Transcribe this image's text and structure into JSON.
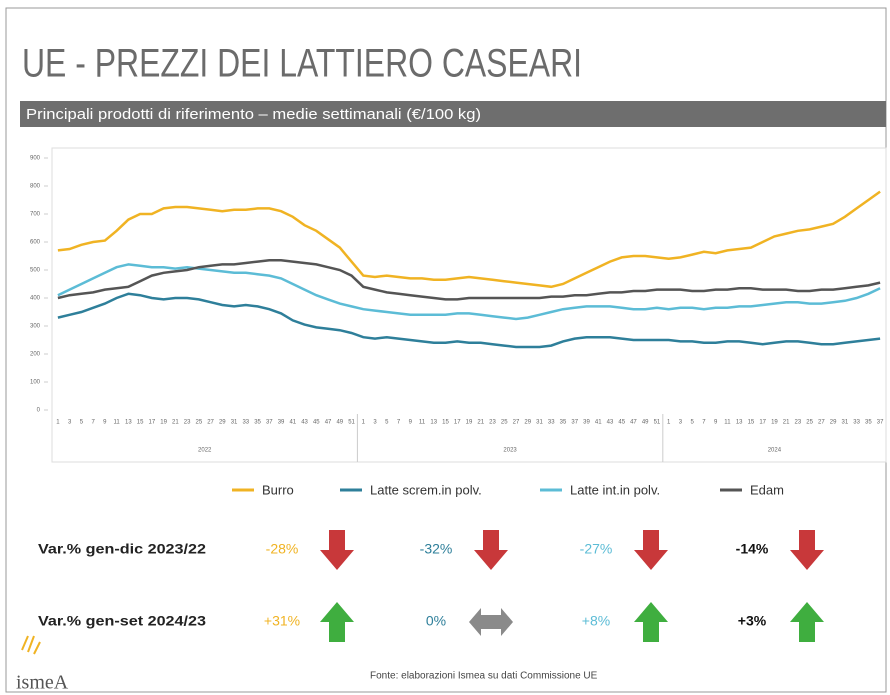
{
  "chart_data": {
    "type": "line",
    "title": "UE - PREZZI DEI LATTIERO CASEARI",
    "subtitle": "Principali prodotti di riferimento – medie settimanali (€/100 kg)",
    "groups": [
      {
        "name": "2022",
        "categories": [
          "1",
          "3",
          "5",
          "7",
          "9",
          "11",
          "13",
          "15",
          "17",
          "19",
          "21",
          "23",
          "25",
          "27",
          "29",
          "31",
          "33",
          "35",
          "37",
          "39",
          "41",
          "43",
          "45",
          "47",
          "49",
          "51"
        ]
      },
      {
        "name": "2023",
        "categories": [
          "1",
          "3",
          "5",
          "7",
          "9",
          "11",
          "13",
          "15",
          "17",
          "19",
          "21",
          "23",
          "25",
          "27",
          "29",
          "31",
          "33",
          "35",
          "37",
          "39",
          "41",
          "43",
          "45",
          "47",
          "49",
          "51"
        ]
      },
      {
        "name": "2024",
        "categories": [
          "1",
          "3",
          "5",
          "7",
          "9",
          "11",
          "13",
          "15",
          "17",
          "19",
          "21",
          "23",
          "25",
          "27",
          "29",
          "31",
          "33",
          "35",
          "37"
        ]
      }
    ],
    "ylim": [
      0,
      900
    ],
    "yticks": [
      0,
      100,
      200,
      300,
      400,
      500,
      600,
      700,
      800,
      900
    ],
    "series": [
      {
        "name": "Burro",
        "color": "#f0b323",
        "values": [
          570,
          575,
          590,
          600,
          605,
          640,
          680,
          700,
          700,
          720,
          725,
          725,
          720,
          715,
          710,
          715,
          715,
          720,
          720,
          710,
          690,
          660,
          640,
          610,
          580,
          530,
          480,
          475,
          480,
          475,
          470,
          470,
          465,
          465,
          470,
          475,
          470,
          465,
          460,
          455,
          450,
          445,
          440,
          450,
          470,
          490,
          510,
          530,
          545,
          550,
          550,
          545,
          540,
          545,
          555,
          565,
          560,
          570,
          575,
          580,
          600,
          620,
          630,
          640,
          645,
          655,
          665,
          690,
          720,
          750,
          780
        ]
      },
      {
        "name": "Latte screm.in polv.",
        "color": "#2e7f9a",
        "values": [
          330,
          340,
          350,
          365,
          380,
          400,
          415,
          410,
          400,
          395,
          400,
          400,
          395,
          385,
          375,
          370,
          375,
          370,
          360,
          345,
          320,
          305,
          295,
          290,
          285,
          275,
          260,
          255,
          260,
          255,
          250,
          245,
          240,
          240,
          245,
          240,
          240,
          235,
          230,
          225,
          225,
          225,
          230,
          245,
          255,
          260,
          260,
          260,
          255,
          250,
          250,
          250,
          250,
          245,
          245,
          240,
          240,
          245,
          245,
          240,
          235,
          240,
          245,
          245,
          240,
          235,
          235,
          240,
          245,
          250,
          255
        ]
      },
      {
        "name": "Latte int.in polv.",
        "color": "#5cbcd6",
        "values": [
          410,
          430,
          450,
          470,
          490,
          510,
          520,
          515,
          510,
          510,
          505,
          510,
          505,
          500,
          495,
          490,
          490,
          485,
          480,
          470,
          450,
          430,
          410,
          395,
          380,
          370,
          360,
          355,
          350,
          345,
          340,
          340,
          340,
          340,
          345,
          345,
          340,
          335,
          330,
          325,
          330,
          340,
          350,
          360,
          365,
          370,
          370,
          370,
          365,
          360,
          360,
          365,
          360,
          365,
          365,
          360,
          365,
          365,
          370,
          370,
          375,
          380,
          385,
          385,
          380,
          380,
          385,
          390,
          400,
          415,
          435
        ]
      },
      {
        "name": "Edam",
        "color": "#555555",
        "values": [
          400,
          410,
          415,
          420,
          430,
          435,
          440,
          460,
          480,
          490,
          495,
          500,
          510,
          515,
          520,
          520,
          525,
          530,
          535,
          535,
          530,
          525,
          520,
          510,
          500,
          480,
          440,
          430,
          420,
          415,
          410,
          405,
          400,
          395,
          395,
          400,
          400,
          400,
          400,
          400,
          400,
          400,
          405,
          405,
          410,
          410,
          415,
          420,
          420,
          425,
          425,
          430,
          430,
          430,
          425,
          425,
          430,
          430,
          435,
          435,
          430,
          430,
          430,
          425,
          425,
          430,
          430,
          435,
          440,
          445,
          455
        ]
      }
    ],
    "variations": [
      {
        "label": "Var.% gen-dic 2023/22",
        "values": [
          "-28%",
          "-32%",
          "-27%",
          "-14%"
        ]
      },
      {
        "label": "Var.% gen-set 2024/23",
        "values": [
          "+31%",
          "0%",
          "+8%",
          "+3%"
        ]
      }
    ],
    "source": "Fonte: elaborazioni Ismea su dati Commissione UE",
    "logo": "ismeA"
  }
}
